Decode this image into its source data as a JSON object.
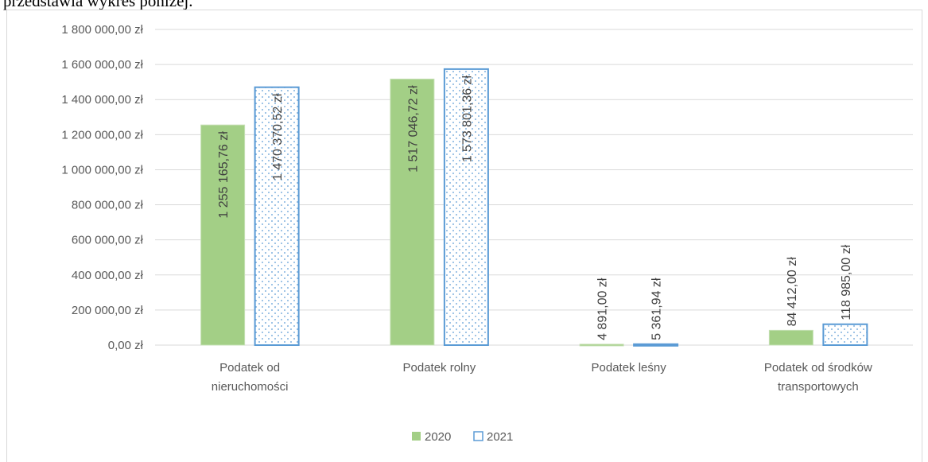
{
  "text": "przedstawia wykres poniżej.",
  "chart_data": {
    "type": "bar",
    "categories": [
      [
        "Podatek od",
        "nieruchomości"
      ],
      [
        "Podatek rolny"
      ],
      [
        "Podatek leśny"
      ],
      [
        "Podatek od środków",
        "transportowych"
      ]
    ],
    "series": [
      {
        "name": "2020",
        "color": "#a3cf86",
        "values": [
          1255165.76,
          1517046.72,
          4891,
          84412
        ],
        "value_labels": [
          "1 255 165,76 zł",
          "1 517 046,72 zł",
          "4 891,00 zł",
          "84 412,00 zł"
        ]
      },
      {
        "name": "2021",
        "color": "#5b9bd5",
        "values": [
          1470370.52,
          1573801.36,
          5361.94,
          118985
        ],
        "value_labels": [
          "1 470 370,52 zł",
          "1 573 801,36 zł",
          "5 361,94 zł",
          "118 985,00 zł"
        ]
      }
    ],
    "ylim": [
      0,
      1800000
    ],
    "yticks": [
      {
        "value": 0,
        "label": "0,00 zł"
      },
      {
        "value": 200000,
        "label": "200 000,00 zł"
      },
      {
        "value": 400000,
        "label": "400 000,00 zł"
      },
      {
        "value": 600000,
        "label": "600 000,00 zł"
      },
      {
        "value": 800000,
        "label": "800 000,00 zł"
      },
      {
        "value": 1000000,
        "label": "1 000 000,00 zł"
      },
      {
        "value": 1200000,
        "label": "1 200 000,00 zł"
      },
      {
        "value": 1400000,
        "label": "1 400 000,00 zł"
      },
      {
        "value": 1600000,
        "label": "1 600 000,00 zł"
      },
      {
        "value": 1800000,
        "label": "1 800 000,00 zł"
      }
    ],
    "grid": true,
    "legend": "bottom"
  }
}
